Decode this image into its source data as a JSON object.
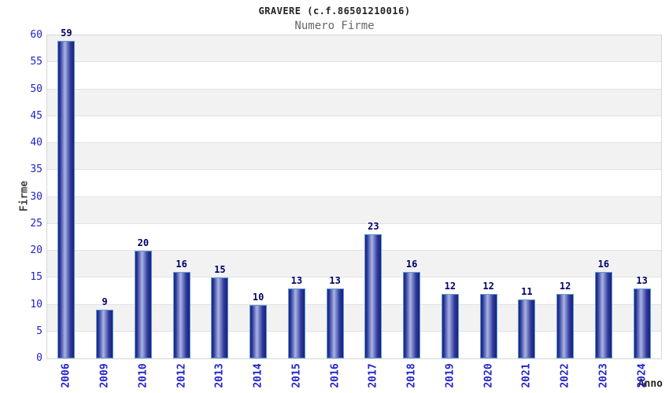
{
  "header": {
    "title": "GRAVERE (c.f.86501210016)",
    "subtitle": "Numero Firme"
  },
  "chart_data": {
    "type": "bar",
    "title": "GRAVERE (c.f.86501210016)",
    "subtitle": "Numero Firme",
    "xlabel": "Anno",
    "ylabel": "Firme",
    "categories": [
      "2006",
      "2009",
      "2010",
      "2012",
      "2013",
      "2014",
      "2015",
      "2016",
      "2017",
      "2018",
      "2019",
      "2020",
      "2021",
      "2022",
      "2023",
      "2024"
    ],
    "values": [
      59,
      9,
      20,
      16,
      15,
      10,
      13,
      13,
      23,
      16,
      12,
      12,
      11,
      12,
      16,
      13
    ],
    "ylim": [
      0,
      60
    ],
    "ytick_step": 5,
    "yticks": [
      0,
      5,
      10,
      15,
      20,
      25,
      30,
      35,
      40,
      45,
      50,
      55,
      60
    ],
    "grid": "horizontal-bands-alternating",
    "legend": "none",
    "bar_value_labels_shown": true
  },
  "colors": {
    "background": "#ffffff",
    "band_gray": "#f2f2f2",
    "gridline": "#e2e2e2",
    "plot_border": "#d6d6d6",
    "bar_edge_dark": "#1b2277",
    "bar_center_light": "#aab4e2",
    "bar_border_light_blue": "#5b9bd5",
    "tick_label_blue": "#2222cc",
    "value_label_navy": "#000066",
    "title_color": "#222222",
    "subtitle_color": "#666666",
    "axis_title_color": "#444444"
  }
}
